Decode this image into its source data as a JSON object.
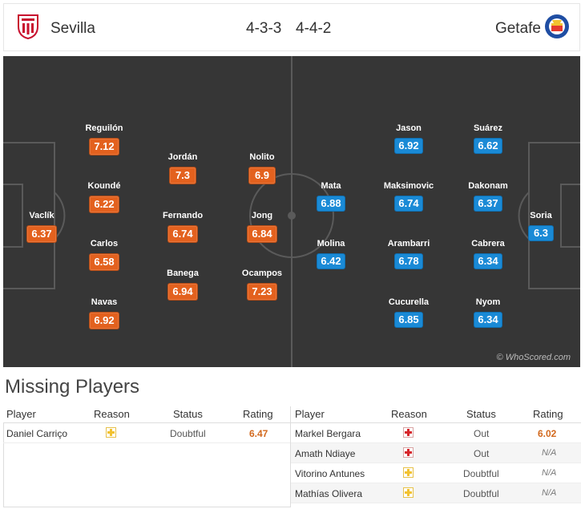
{
  "header": {
    "home_team": "Sevilla",
    "home_formation": "4-3-3",
    "away_formation": "4-4-2",
    "away_team": "Getafe",
    "home_crest_icon": "sevilla-crest-icon",
    "away_crest_icon": "getafe-crest-icon"
  },
  "pitch": {
    "credit": "© WhoScored.com",
    "home_players": [
      {
        "name": "Reguilón",
        "rating": "7.12"
      },
      {
        "name": "Koundé",
        "rating": "6.22"
      },
      {
        "name": "Carlos",
        "rating": "6.58"
      },
      {
        "name": "Navas",
        "rating": "6.92"
      },
      {
        "name": "Vaclík",
        "rating": "6.37"
      },
      {
        "name": "Jordán",
        "rating": "7.3"
      },
      {
        "name": "Fernando",
        "rating": "6.74"
      },
      {
        "name": "Banega",
        "rating": "6.94"
      },
      {
        "name": "Nolito",
        "rating": "6.9"
      },
      {
        "name": "Jong",
        "rating": "6.84"
      },
      {
        "name": "Ocampos",
        "rating": "7.23"
      }
    ],
    "away_players": [
      {
        "name": "Mata",
        "rating": "6.88"
      },
      {
        "name": "Molina",
        "rating": "6.42"
      },
      {
        "name": "Jason",
        "rating": "6.92"
      },
      {
        "name": "Maksimovic",
        "rating": "6.74"
      },
      {
        "name": "Arambarri",
        "rating": "6.78"
      },
      {
        "name": "Cucurella",
        "rating": "6.85"
      },
      {
        "name": "Suárez",
        "rating": "6.62"
      },
      {
        "name": "Dakonam",
        "rating": "6.37"
      },
      {
        "name": "Cabrera",
        "rating": "6.34"
      },
      {
        "name": "Nyom",
        "rating": "6.34"
      },
      {
        "name": "Soria",
        "rating": "6.3"
      }
    ]
  },
  "missing": {
    "title": "Missing Players",
    "columns": {
      "player": "Player",
      "reason": "Reason",
      "status": "Status",
      "rating": "Rating"
    },
    "home": [
      {
        "player": "Daniel Carriço",
        "reason": "doubtful-icon",
        "status": "Doubtful",
        "rating": "6.47"
      }
    ],
    "away": [
      {
        "player": "Markel Bergara",
        "reason": "injury-icon",
        "status": "Out",
        "rating": "6.02"
      },
      {
        "player": "Amath Ndiaye",
        "reason": "injury-icon",
        "status": "Out",
        "rating": "N/A"
      },
      {
        "player": "Vitorino Antunes",
        "reason": "doubtful-icon",
        "status": "Doubtful",
        "rating": "N/A"
      },
      {
        "player": "Mathías Olivera",
        "reason": "doubtful-icon",
        "status": "Doubtful",
        "rating": "N/A"
      }
    ]
  },
  "colors": {
    "home_rating": "#e3611e",
    "away_rating": "#1a8ad6",
    "pitch": "#363636"
  }
}
